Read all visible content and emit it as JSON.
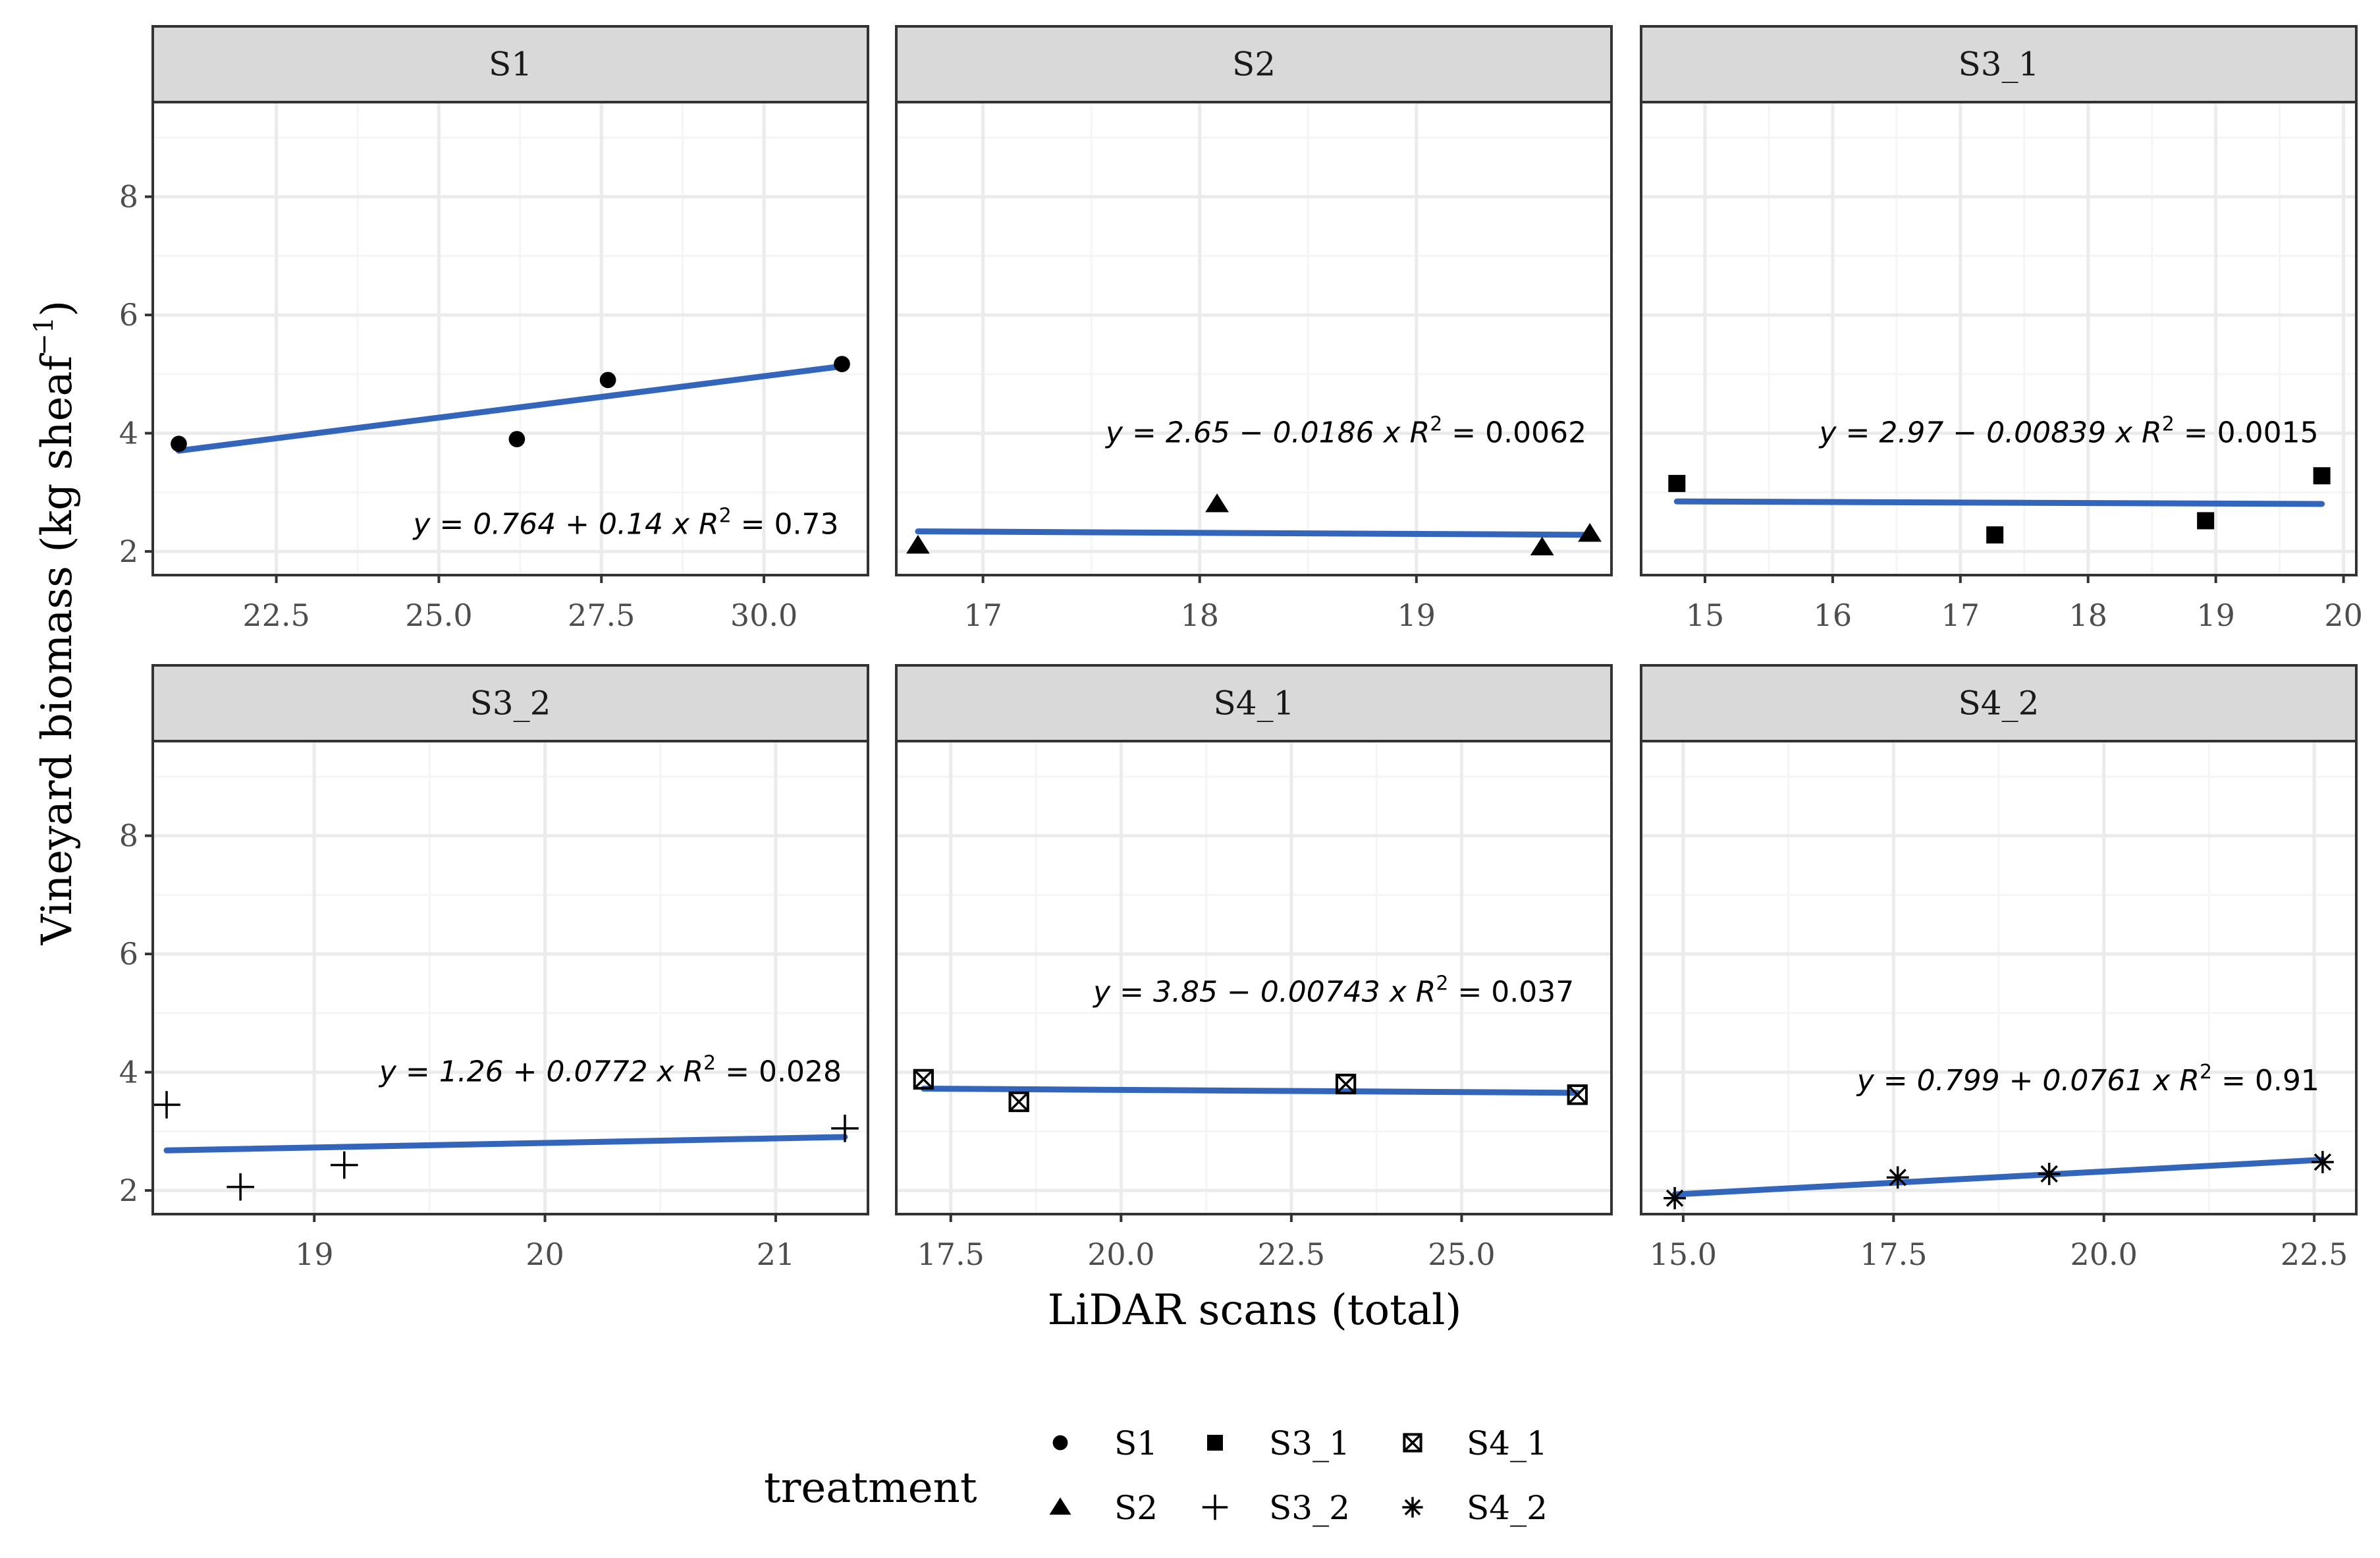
{
  "chart_data": {
    "type": "scatter",
    "xlabel": "LiDAR scans (total)",
    "ylabel": "Vineyard biomass (kg sheaf",
    "ylabel_sup": "−1",
    "ylabel_close": ")",
    "ylim": [
      1.6,
      9.6
    ],
    "yticks": [
      2,
      4,
      6,
      8
    ],
    "ytick_labels": [
      "2",
      "4",
      "6",
      "8"
    ],
    "grid": true,
    "colors": {
      "fit_line": "#3366bb",
      "point": "#000000",
      "strip_bg": "#d9d9d9",
      "grid_major": "#ebebeb",
      "grid_minor": "#f5f5f5"
    },
    "legend": {
      "title": "treatment",
      "position": "bottom",
      "items": [
        {
          "label": "S1",
          "shape": "circle"
        },
        {
          "label": "S2",
          "shape": "triangle"
        },
        {
          "label": "S3_1",
          "shape": "square"
        },
        {
          "label": "S3_2",
          "shape": "plus"
        },
        {
          "label": "S4_1",
          "shape": "boxcross"
        },
        {
          "label": "S4_2",
          "shape": "asterisk"
        }
      ]
    },
    "panels": [
      {
        "title": "S1",
        "shape": "circle",
        "xlim": [
          20.6,
          31.6
        ],
        "xticks": [
          22.5,
          25.0,
          27.5,
          30.0
        ],
        "xtick_labels": [
          "22.5",
          "25.0",
          "27.5",
          "30.0"
        ],
        "points": [
          [
            21.0,
            3.82
          ],
          [
            26.2,
            3.9
          ],
          [
            27.6,
            4.9
          ],
          [
            31.2,
            5.17
          ]
        ],
        "fit": {
          "intercept": 0.764,
          "slope": 0.14,
          "x_range": [
            21.0,
            31.2
          ]
        },
        "equation": {
          "lhs": "y = 0.764 + 0.14 x",
          "r2": "= 0.73",
          "anchor": [
            31.2,
            2.45
          ]
        }
      },
      {
        "title": "S2",
        "shape": "triangle",
        "xlim": [
          16.6,
          19.9
        ],
        "xticks": [
          17,
          18,
          19
        ],
        "xtick_labels": [
          "17",
          "18",
          "19"
        ],
        "points": [
          [
            16.7,
            2.1
          ],
          [
            18.08,
            2.8
          ],
          [
            19.58,
            2.07
          ],
          [
            19.8,
            2.3
          ]
        ],
        "fit": {
          "intercept": 2.65,
          "slope": -0.0186,
          "x_range": [
            16.7,
            19.8
          ]
        },
        "equation": {
          "lhs": "y = 2.65 − 0.0186 x",
          "r2": "= 0.0062",
          "anchor": [
            19.8,
            2.45
          ]
        }
      },
      {
        "title": "S3_1",
        "shape": "square",
        "xlim": [
          14.5,
          20.1
        ],
        "xticks": [
          15,
          16,
          17,
          18,
          19,
          20
        ],
        "xtick_labels": [
          "15",
          "16",
          "17",
          "18",
          "19",
          "20"
        ],
        "points": [
          [
            14.78,
            3.15
          ],
          [
            17.27,
            2.28
          ],
          [
            18.92,
            2.52
          ],
          [
            19.83,
            3.28
          ]
        ],
        "fit": {
          "intercept": 2.97,
          "slope": -0.00839,
          "x_range": [
            14.78,
            19.83
          ]
        },
        "equation": {
          "lhs": "y = 2.97 − 0.00839 x",
          "r2": "= 0.0015",
          "anchor": [
            19.83,
            2.45
          ]
        }
      },
      {
        "title": "S3_2",
        "shape": "plus",
        "xlim": [
          18.3,
          21.4
        ],
        "xticks": [
          19,
          20,
          21
        ],
        "xtick_labels": [
          "19",
          "20",
          "21"
        ],
        "points": [
          [
            18.36,
            3.45
          ],
          [
            18.68,
            2.06
          ],
          [
            19.13,
            2.43
          ],
          [
            21.3,
            3.05
          ]
        ],
        "fit": {
          "intercept": 1.26,
          "slope": 0.0772,
          "x_range": [
            18.36,
            21.3
          ]
        },
        "equation": {
          "lhs": "y = 1.26 + 0.0772 x",
          "r2": "= 0.028",
          "anchor": [
            21.3,
            2.45
          ]
        }
      },
      {
        "title": "S4_1",
        "shape": "boxcross",
        "xlim": [
          16.7,
          27.2
        ],
        "xticks": [
          17.5,
          20.0,
          22.5,
          25.0
        ],
        "xtick_labels": [
          "17.5",
          "20.0",
          "22.5",
          "25.0"
        ],
        "points": [
          [
            17.1,
            3.88
          ],
          [
            18.5,
            3.5
          ],
          [
            23.3,
            3.8
          ],
          [
            26.7,
            3.62
          ]
        ],
        "fit": {
          "intercept": 3.85,
          "slope": -0.00743,
          "x_range": [
            17.1,
            26.7
          ]
        },
        "equation": {
          "lhs": "y = 3.85 − 0.00743 x",
          "r2": "= 0.037",
          "anchor": [
            26.7,
            2.45
          ]
        }
      },
      {
        "title": "S4_2",
        "shape": "asterisk",
        "xlim": [
          14.5,
          23.0
        ],
        "xticks": [
          15.0,
          17.5,
          20.0,
          22.5
        ],
        "xtick_labels": [
          "15.0",
          "17.5",
          "20.0",
          "22.5"
        ],
        "points": [
          [
            14.9,
            1.87
          ],
          [
            17.55,
            2.22
          ],
          [
            19.35,
            2.28
          ],
          [
            22.6,
            2.48
          ]
        ],
        "fit": {
          "intercept": 0.799,
          "slope": 0.0761,
          "x_range": [
            14.9,
            22.6
          ]
        },
        "equation": {
          "lhs": "y = 0.799 + 0.0761 x",
          "r2": "= 0.91",
          "anchor": [
            22.6,
            2.45
          ]
        }
      }
    ]
  }
}
